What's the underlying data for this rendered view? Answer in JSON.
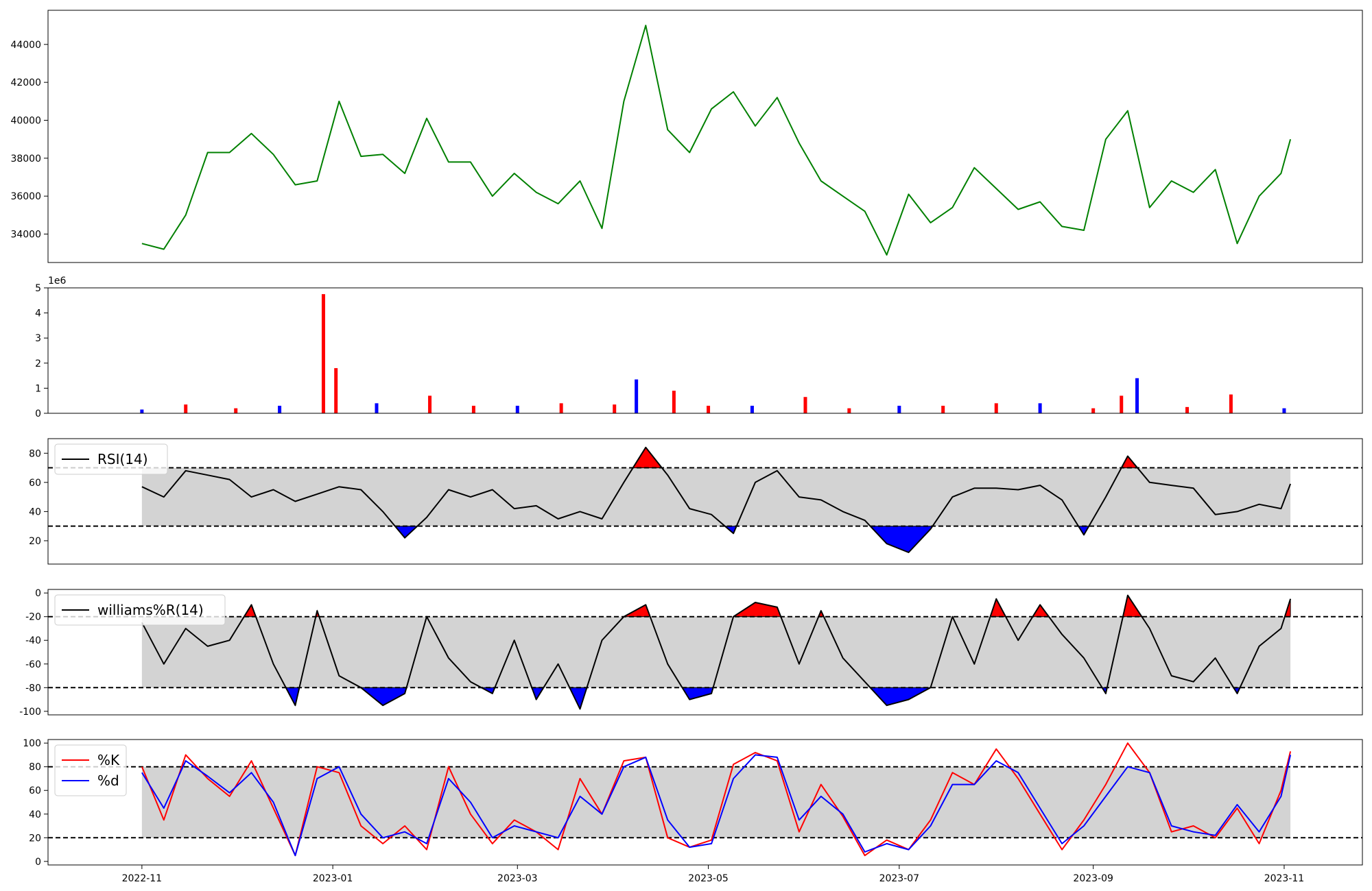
{
  "chart_data": [
    {
      "type": "line",
      "panel": "price",
      "color": "#008000",
      "yticks": [
        34000,
        36000,
        38000,
        40000,
        42000,
        44000
      ],
      "ylim": [
        32500,
        45800
      ],
      "x": [
        "2022-11-01",
        "2022-11-08",
        "2022-11-15",
        "2022-11-22",
        "2022-11-29",
        "2022-12-06",
        "2022-12-13",
        "2022-12-20",
        "2022-12-27",
        "2023-01-03",
        "2023-01-10",
        "2023-01-17",
        "2023-01-24",
        "2023-01-31",
        "2023-02-07",
        "2023-02-14",
        "2023-02-21",
        "2023-02-28",
        "2023-03-07",
        "2023-03-14",
        "2023-03-21",
        "2023-03-28",
        "2023-04-04",
        "2023-04-11",
        "2023-04-18",
        "2023-04-25",
        "2023-05-02",
        "2023-05-09",
        "2023-05-16",
        "2023-05-23",
        "2023-05-30",
        "2023-06-06",
        "2023-06-13",
        "2023-06-20",
        "2023-06-27",
        "2023-07-04",
        "2023-07-11",
        "2023-07-18",
        "2023-07-25",
        "2023-08-01",
        "2023-08-08",
        "2023-08-15",
        "2023-08-22",
        "2023-08-29",
        "2023-09-05",
        "2023-09-12",
        "2023-09-19",
        "2023-09-26",
        "2023-10-03",
        "2023-10-10",
        "2023-10-17",
        "2023-10-24",
        "2023-10-31",
        "2023-11-03"
      ],
      "y": [
        33500,
        33200,
        35000,
        38300,
        38300,
        39300,
        38200,
        36600,
        36800,
        41000,
        38100,
        38200,
        37200,
        40100,
        37800,
        37800,
        36000,
        37200,
        36200,
        35600,
        36800,
        34300,
        41000,
        45000,
        39500,
        38300,
        40600,
        41500,
        39700,
        41200,
        38800,
        36800,
        36000,
        35200,
        32900,
        36100,
        34600,
        35400,
        37500,
        36400,
        35300,
        35700,
        34400,
        34200,
        39000,
        40500,
        35400,
        36800,
        36200,
        37400,
        33500,
        36000,
        37200,
        39000
      ]
    },
    {
      "type": "bar",
      "panel": "volume",
      "exponent_label": "1e6",
      "colors": {
        "up": "#ff0000",
        "down": "#0000ff"
      },
      "yticks": [
        0,
        1,
        2,
        3,
        4,
        5
      ],
      "ylim": [
        0,
        5
      ],
      "x": [
        "2022-11-01",
        "2022-11-15",
        "2022-12-01",
        "2022-12-15",
        "2022-12-29",
        "2023-01-02",
        "2023-01-15",
        "2023-02-01",
        "2023-02-15",
        "2023-03-01",
        "2023-03-15",
        "2023-04-01",
        "2023-04-08",
        "2023-04-20",
        "2023-05-01",
        "2023-05-15",
        "2023-06-01",
        "2023-06-15",
        "2023-07-01",
        "2023-07-15",
        "2023-08-01",
        "2023-08-15",
        "2023-09-01",
        "2023-09-10",
        "2023-09-15",
        "2023-10-01",
        "2023-10-15",
        "2023-11-01"
      ],
      "y": [
        0.15,
        0.35,
        0.2,
        0.3,
        4.75,
        1.8,
        0.4,
        0.7,
        0.3,
        0.3,
        0.4,
        0.35,
        1.35,
        0.9,
        0.3,
        0.3,
        0.65,
        0.2,
        0.3,
        0.3,
        0.4,
        0.4,
        0.2,
        0.7,
        1.4,
        0.25,
        0.75,
        0.2
      ]
    },
    {
      "type": "line",
      "panel": "rsi",
      "series": [
        {
          "name": "RSI(14)",
          "color": "#000000"
        }
      ],
      "overbought": 70,
      "oversold": 30,
      "yticks": [
        20,
        40,
        60,
        80
      ],
      "ylim": [
        4,
        90
      ],
      "x": [
        "2022-11-01",
        "2022-11-08",
        "2022-11-15",
        "2022-11-22",
        "2022-11-29",
        "2022-12-06",
        "2022-12-13",
        "2022-12-20",
        "2022-12-27",
        "2023-01-03",
        "2023-01-10",
        "2023-01-17",
        "2023-01-24",
        "2023-01-31",
        "2023-02-07",
        "2023-02-14",
        "2023-02-21",
        "2023-02-28",
        "2023-03-07",
        "2023-03-14",
        "2023-03-21",
        "2023-03-28",
        "2023-04-04",
        "2023-04-11",
        "2023-04-18",
        "2023-04-25",
        "2023-05-02",
        "2023-05-09",
        "2023-05-16",
        "2023-05-23",
        "2023-05-30",
        "2023-06-06",
        "2023-06-13",
        "2023-06-20",
        "2023-06-27",
        "2023-07-04",
        "2023-07-11",
        "2023-07-18",
        "2023-07-25",
        "2023-08-01",
        "2023-08-08",
        "2023-08-15",
        "2023-08-22",
        "2023-08-29",
        "2023-09-05",
        "2023-09-12",
        "2023-09-19",
        "2023-09-26",
        "2023-10-03",
        "2023-10-10",
        "2023-10-17",
        "2023-10-24",
        "2023-10-31",
        "2023-11-03"
      ],
      "y": [
        57,
        50,
        68,
        65,
        62,
        50,
        55,
        47,
        52,
        57,
        55,
        40,
        22,
        36,
        55,
        50,
        55,
        42,
        44,
        35,
        40,
        35,
        60,
        84,
        65,
        42,
        38,
        25,
        60,
        68,
        50,
        48,
        40,
        34,
        18,
        12,
        28,
        50,
        56,
        56,
        55,
        58,
        48,
        24,
        50,
        78,
        60,
        58,
        56,
        38,
        40,
        45,
        42,
        59
      ]
    },
    {
      "type": "line",
      "panel": "williams",
      "series": [
        {
          "name": "williams%R(14)",
          "color": "#000000"
        }
      ],
      "upper": -20,
      "lower": -80,
      "yticks": [
        -100,
        -80,
        -60,
        -40,
        -20,
        0
      ],
      "ylim": [
        -103,
        3
      ],
      "x": [
        "2022-11-01",
        "2022-11-08",
        "2022-11-15",
        "2022-11-22",
        "2022-11-29",
        "2022-12-06",
        "2022-12-13",
        "2022-12-20",
        "2022-12-27",
        "2023-01-03",
        "2023-01-10",
        "2023-01-17",
        "2023-01-24",
        "2023-01-31",
        "2023-02-07",
        "2023-02-14",
        "2023-02-21",
        "2023-02-28",
        "2023-03-07",
        "2023-03-14",
        "2023-03-21",
        "2023-03-28",
        "2023-04-04",
        "2023-04-11",
        "2023-04-18",
        "2023-04-25",
        "2023-05-02",
        "2023-05-09",
        "2023-05-16",
        "2023-05-23",
        "2023-05-30",
        "2023-06-06",
        "2023-06-13",
        "2023-06-20",
        "2023-06-27",
        "2023-07-04",
        "2023-07-11",
        "2023-07-18",
        "2023-07-25",
        "2023-08-01",
        "2023-08-08",
        "2023-08-15",
        "2023-08-22",
        "2023-08-29",
        "2023-09-05",
        "2023-09-12",
        "2023-09-19",
        "2023-09-26",
        "2023-10-03",
        "2023-10-10",
        "2023-10-17",
        "2023-10-24",
        "2023-10-31",
        "2023-11-03"
      ],
      "y": [
        -25,
        -60,
        -30,
        -45,
        -40,
        -10,
        -60,
        -95,
        -15,
        -70,
        -80,
        -95,
        -85,
        -20,
        -55,
        -75,
        -85,
        -40,
        -90,
        -60,
        -98,
        -40,
        -20,
        -10,
        -60,
        -90,
        -85,
        -20,
        -8,
        -12,
        -60,
        -15,
        -55,
        -75,
        -95,
        -90,
        -80,
        -20,
        -60,
        -5,
        -40,
        -10,
        -35,
        -55,
        -85,
        -2,
        -30,
        -70,
        -75,
        -55,
        -85,
        -45,
        -30,
        -5
      ]
    },
    {
      "type": "line",
      "panel": "stochastic",
      "series": [
        {
          "name": "%K",
          "color": "#ff0000"
        },
        {
          "name": "%d",
          "color": "#0000ff"
        }
      ],
      "upper": 80,
      "lower": 20,
      "yticks": [
        0,
        20,
        40,
        60,
        80,
        100
      ],
      "ylim": [
        -3,
        103
      ],
      "x": [
        "2022-11-01",
        "2022-11-08",
        "2022-11-15",
        "2022-11-22",
        "2022-11-29",
        "2022-12-06",
        "2022-12-13",
        "2022-12-20",
        "2022-12-27",
        "2023-01-03",
        "2023-01-10",
        "2023-01-17",
        "2023-01-24",
        "2023-01-31",
        "2023-02-07",
        "2023-02-14",
        "2023-02-21",
        "2023-02-28",
        "2023-03-07",
        "2023-03-14",
        "2023-03-21",
        "2023-03-28",
        "2023-04-04",
        "2023-04-11",
        "2023-04-18",
        "2023-04-25",
        "2023-05-02",
        "2023-05-09",
        "2023-05-16",
        "2023-05-23",
        "2023-05-30",
        "2023-06-06",
        "2023-06-13",
        "2023-06-20",
        "2023-06-27",
        "2023-07-04",
        "2023-07-11",
        "2023-07-18",
        "2023-07-25",
        "2023-08-01",
        "2023-08-08",
        "2023-08-15",
        "2023-08-22",
        "2023-08-29",
        "2023-09-05",
        "2023-09-12",
        "2023-09-19",
        "2023-09-26",
        "2023-10-03",
        "2023-10-10",
        "2023-10-17",
        "2023-10-24",
        "2023-10-31",
        "2023-11-03"
      ],
      "k": [
        80,
        35,
        90,
        70,
        55,
        85,
        45,
        5,
        80,
        75,
        30,
        15,
        30,
        10,
        80,
        40,
        15,
        35,
        25,
        10,
        70,
        40,
        85,
        88,
        20,
        12,
        18,
        82,
        92,
        85,
        25,
        65,
        38,
        5,
        18,
        10,
        35,
        75,
        65,
        95,
        70,
        40,
        10,
        35,
        65,
        100,
        75,
        25,
        30,
        20,
        45,
        15,
        60,
        93
      ],
      "d": [
        75,
        45,
        85,
        72,
        58,
        75,
        50,
        5,
        70,
        80,
        40,
        20,
        25,
        15,
        70,
        50,
        20,
        30,
        25,
        20,
        55,
        40,
        80,
        88,
        35,
        12,
        15,
        70,
        90,
        88,
        35,
        55,
        40,
        8,
        15,
        10,
        30,
        65,
        65,
        85,
        75,
        45,
        15,
        30,
        55,
        80,
        75,
        30,
        25,
        22,
        48,
        25,
        55,
        90
      ]
    }
  ],
  "x_axis": {
    "ticks": [
      "2022-11",
      "2023-01",
      "2023-03",
      "2023-05",
      "2023-07",
      "2023-09",
      "2023-11"
    ]
  }
}
